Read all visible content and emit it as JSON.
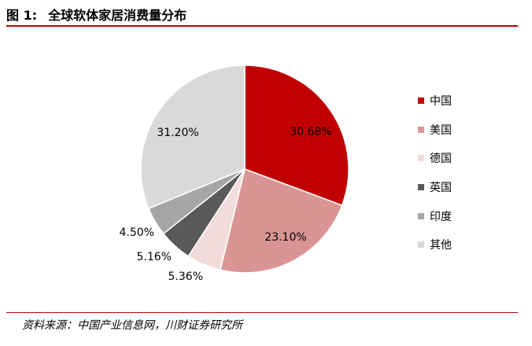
{
  "header": {
    "figure_no": "图 1:",
    "title": "全球软体家居消费量分布"
  },
  "source": "资料来源：中国产业信息网，川财证券研究所",
  "colors": {
    "rule": "#c00000"
  },
  "chart_data": {
    "type": "pie",
    "title": "全球软体家居消费量分布",
    "legend_position": "right",
    "slices": [
      {
        "name": "中国",
        "value": 30.68,
        "label": "30.68%",
        "color": "#c00000"
      },
      {
        "name": "美国",
        "value": 23.1,
        "label": "23.10%",
        "color": "#d99594"
      },
      {
        "name": "德国",
        "value": 5.36,
        "label": "5.36%",
        "color": "#f2dcdb"
      },
      {
        "name": "英国",
        "value": 5.16,
        "label": "5.16%",
        "color": "#595959"
      },
      {
        "name": "印度",
        "value": 4.5,
        "label": "4.50%",
        "color": "#a6a6a6"
      },
      {
        "name": "其他",
        "value": 31.2,
        "label": "31.20%",
        "color": "#d9d9d9"
      }
    ]
  }
}
